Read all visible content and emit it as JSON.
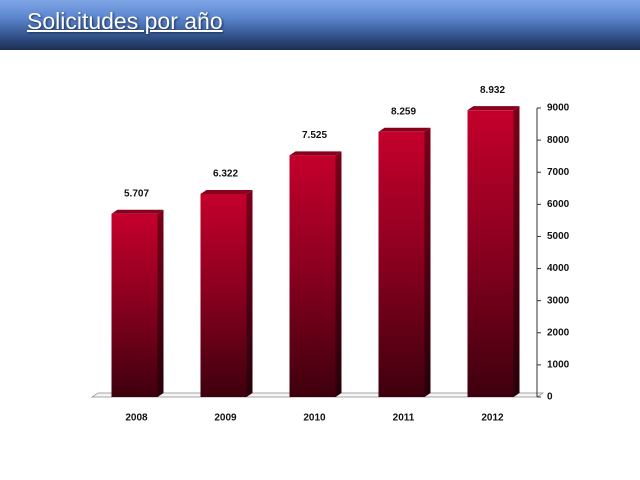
{
  "chart_data": {
    "type": "bar",
    "title": "Solicitudes por año",
    "categories": [
      "2008",
      "2009",
      "2010",
      "2011",
      "2012"
    ],
    "values": [
      5707,
      6322,
      7525,
      8259,
      8932
    ],
    "value_labels": [
      "5.707",
      "6.322",
      "7.525",
      "8.259",
      "8.932"
    ],
    "color": "#b8002a",
    "ylim": [
      0,
      9000
    ],
    "yticks": [
      0,
      1000,
      2000,
      3000,
      4000,
      5000,
      6000,
      7000,
      8000,
      9000
    ],
    "y_axis_side": "right",
    "grid": false
  }
}
